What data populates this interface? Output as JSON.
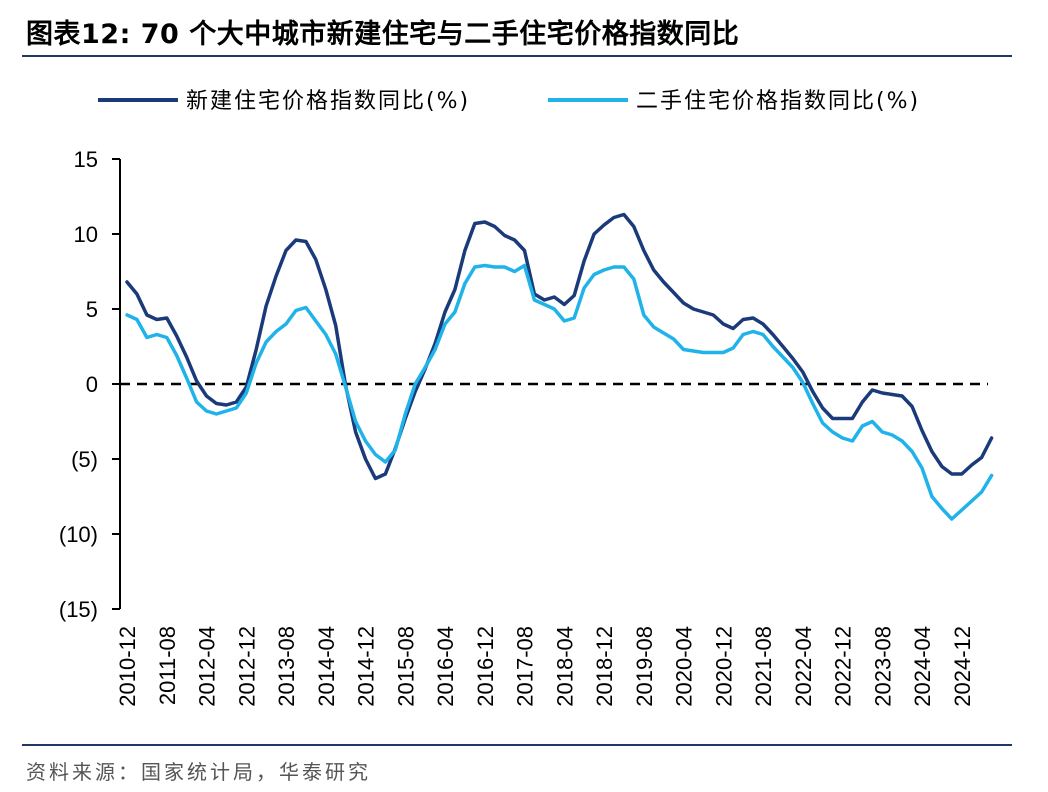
{
  "header": {
    "title": "图表12:  70 个大中城市新建住宅与二手住宅价格指数同比"
  },
  "footer": {
    "source": "资料来源：国家统计局，华泰研究"
  },
  "chart_data": {
    "type": "line",
    "title": "",
    "xlabel": "",
    "ylabel": "",
    "ylim": [
      -15,
      15
    ],
    "y_ticks": [
      15,
      10,
      5,
      0,
      -5,
      -10,
      -15
    ],
    "y_tick_labels": [
      "15",
      "10",
      "5",
      "0",
      "(5)",
      "(10)",
      "(15)"
    ],
    "x_tick_labels": [
      "2010-12",
      "2011-08",
      "2012-04",
      "2012-12",
      "2013-08",
      "2014-04",
      "2014-12",
      "2015-08",
      "2016-04",
      "2016-12",
      "2017-08",
      "2018-04",
      "2018-12",
      "2019-08",
      "2020-04",
      "2020-12",
      "2021-08",
      "2022-04",
      "2022-12",
      "2023-08",
      "2024-04",
      "2024-12"
    ],
    "x_start": "2010-12",
    "zero_line": "dashed",
    "grid": false,
    "legend_position": "top",
    "series": [
      {
        "name": "新建住宅价格指数同比(%)",
        "color": "#1a3a7a",
        "points": [
          [
            "2010-12",
            6.8
          ],
          [
            "2011-02",
            6.0
          ],
          [
            "2011-04",
            4.6
          ],
          [
            "2011-06",
            4.3
          ],
          [
            "2011-08",
            4.4
          ],
          [
            "2011-10",
            3.2
          ],
          [
            "2011-12",
            1.8
          ],
          [
            "2012-02",
            0.2
          ],
          [
            "2012-04",
            -0.8
          ],
          [
            "2012-06",
            -1.3
          ],
          [
            "2012-08",
            -1.4
          ],
          [
            "2012-10",
            -1.2
          ],
          [
            "2012-12",
            -0.2
          ],
          [
            "2013-02",
            2.3
          ],
          [
            "2013-04",
            5.2
          ],
          [
            "2013-06",
            7.2
          ],
          [
            "2013-08",
            8.9
          ],
          [
            "2013-10",
            9.6
          ],
          [
            "2013-12",
            9.5
          ],
          [
            "2014-02",
            8.3
          ],
          [
            "2014-04",
            6.3
          ],
          [
            "2014-06",
            3.9
          ],
          [
            "2014-08",
            -0.1
          ],
          [
            "2014-10",
            -3.2
          ],
          [
            "2014-12",
            -5.0
          ],
          [
            "2015-02",
            -6.3
          ],
          [
            "2015-04",
            -6.0
          ],
          [
            "2015-06",
            -4.3
          ],
          [
            "2015-08",
            -2.3
          ],
          [
            "2015-10",
            -0.5
          ],
          [
            "2015-12",
            1.0
          ],
          [
            "2016-02",
            2.7
          ],
          [
            "2016-04",
            4.8
          ],
          [
            "2016-06",
            6.3
          ],
          [
            "2016-08",
            8.9
          ],
          [
            "2016-10",
            10.7
          ],
          [
            "2016-12",
            10.8
          ],
          [
            "2017-02",
            10.5
          ],
          [
            "2017-04",
            9.9
          ],
          [
            "2017-06",
            9.6
          ],
          [
            "2017-08",
            8.9
          ],
          [
            "2017-10",
            6.0
          ],
          [
            "2017-12",
            5.6
          ],
          [
            "2018-02",
            5.8
          ],
          [
            "2018-04",
            5.3
          ],
          [
            "2018-06",
            5.9
          ],
          [
            "2018-08",
            8.2
          ],
          [
            "2018-10",
            10.0
          ],
          [
            "2018-12",
            10.6
          ],
          [
            "2019-02",
            11.1
          ],
          [
            "2019-04",
            11.3
          ],
          [
            "2019-06",
            10.5
          ],
          [
            "2019-08",
            8.9
          ],
          [
            "2019-10",
            7.6
          ],
          [
            "2019-12",
            6.8
          ],
          [
            "2020-02",
            6.1
          ],
          [
            "2020-04",
            5.4
          ],
          [
            "2020-06",
            5.0
          ],
          [
            "2020-08",
            4.8
          ],
          [
            "2020-10",
            4.6
          ],
          [
            "2020-12",
            4.0
          ],
          [
            "2021-02",
            3.7
          ],
          [
            "2021-04",
            4.3
          ],
          [
            "2021-06",
            4.4
          ],
          [
            "2021-08",
            4.0
          ],
          [
            "2021-10",
            3.3
          ],
          [
            "2021-12",
            2.5
          ],
          [
            "2022-02",
            1.7
          ],
          [
            "2022-04",
            0.8
          ],
          [
            "2022-06",
            -0.5
          ],
          [
            "2022-08",
            -1.6
          ],
          [
            "2022-10",
            -2.3
          ],
          [
            "2022-12",
            -2.3
          ],
          [
            "2023-02",
            -2.3
          ],
          [
            "2023-04",
            -1.2
          ],
          [
            "2023-06",
            -0.4
          ],
          [
            "2023-08",
            -0.6
          ],
          [
            "2023-10",
            -0.7
          ],
          [
            "2023-12",
            -0.8
          ],
          [
            "2024-02",
            -1.5
          ],
          [
            "2024-04",
            -3.1
          ],
          [
            "2024-06",
            -4.5
          ],
          [
            "2024-08",
            -5.5
          ],
          [
            "2024-10",
            -6.0
          ],
          [
            "2024-12",
            -6.0
          ],
          [
            "2025-02",
            -5.4
          ],
          [
            "2025-04",
            -4.9
          ],
          [
            "2025-06",
            -3.6
          ]
        ]
      },
      {
        "name": "二手住宅价格指数同比(%)",
        "color": "#1fb3ea",
        "points": [
          [
            "2010-12",
            4.6
          ],
          [
            "2011-02",
            4.3
          ],
          [
            "2011-04",
            3.1
          ],
          [
            "2011-06",
            3.3
          ],
          [
            "2011-08",
            3.1
          ],
          [
            "2011-10",
            1.9
          ],
          [
            "2011-12",
            0.4
          ],
          [
            "2012-02",
            -1.2
          ],
          [
            "2012-04",
            -1.8
          ],
          [
            "2012-06",
            -2.0
          ],
          [
            "2012-08",
            -1.8
          ],
          [
            "2012-10",
            -1.6
          ],
          [
            "2012-12",
            -0.6
          ],
          [
            "2013-02",
            1.4
          ],
          [
            "2013-04",
            2.8
          ],
          [
            "2013-06",
            3.5
          ],
          [
            "2013-08",
            4.0
          ],
          [
            "2013-10",
            4.9
          ],
          [
            "2013-12",
            5.1
          ],
          [
            "2014-02",
            4.2
          ],
          [
            "2014-04",
            3.3
          ],
          [
            "2014-06",
            2.0
          ],
          [
            "2014-08",
            -0.2
          ],
          [
            "2014-10",
            -2.5
          ],
          [
            "2014-12",
            -3.8
          ],
          [
            "2015-02",
            -4.7
          ],
          [
            "2015-04",
            -5.2
          ],
          [
            "2015-06",
            -4.4
          ],
          [
            "2015-08",
            -2.0
          ],
          [
            "2015-10",
            0.0
          ],
          [
            "2015-12",
            1.1
          ],
          [
            "2016-02",
            2.3
          ],
          [
            "2016-04",
            4.0
          ],
          [
            "2016-06",
            4.8
          ],
          [
            "2016-08",
            6.7
          ],
          [
            "2016-10",
            7.8
          ],
          [
            "2016-12",
            7.9
          ],
          [
            "2017-02",
            7.8
          ],
          [
            "2017-04",
            7.8
          ],
          [
            "2017-06",
            7.5
          ],
          [
            "2017-08",
            7.9
          ],
          [
            "2017-10",
            5.6
          ],
          [
            "2017-12",
            5.3
          ],
          [
            "2018-02",
            5.0
          ],
          [
            "2018-04",
            4.2
          ],
          [
            "2018-06",
            4.4
          ],
          [
            "2018-08",
            6.4
          ],
          [
            "2018-10",
            7.3
          ],
          [
            "2018-12",
            7.6
          ],
          [
            "2019-02",
            7.8
          ],
          [
            "2019-04",
            7.8
          ],
          [
            "2019-06",
            7.0
          ],
          [
            "2019-08",
            4.6
          ],
          [
            "2019-10",
            3.8
          ],
          [
            "2019-12",
            3.4
          ],
          [
            "2020-02",
            3.0
          ],
          [
            "2020-04",
            2.3
          ],
          [
            "2020-06",
            2.2
          ],
          [
            "2020-08",
            2.1
          ],
          [
            "2020-10",
            2.1
          ],
          [
            "2020-12",
            2.1
          ],
          [
            "2021-02",
            2.4
          ],
          [
            "2021-04",
            3.3
          ],
          [
            "2021-06",
            3.5
          ],
          [
            "2021-08",
            3.3
          ],
          [
            "2021-10",
            2.5
          ],
          [
            "2021-12",
            1.8
          ],
          [
            "2022-02",
            1.1
          ],
          [
            "2022-04",
            0.1
          ],
          [
            "2022-06",
            -1.3
          ],
          [
            "2022-08",
            -2.6
          ],
          [
            "2022-10",
            -3.2
          ],
          [
            "2022-12",
            -3.6
          ],
          [
            "2023-02",
            -3.8
          ],
          [
            "2023-04",
            -2.8
          ],
          [
            "2023-06",
            -2.5
          ],
          [
            "2023-08",
            -3.2
          ],
          [
            "2023-10",
            -3.4
          ],
          [
            "2023-12",
            -3.8
          ],
          [
            "2024-02",
            -4.5
          ],
          [
            "2024-04",
            -5.6
          ],
          [
            "2024-06",
            -7.5
          ],
          [
            "2024-08",
            -8.3
          ],
          [
            "2024-10",
            -9.0
          ],
          [
            "2024-12",
            -8.4
          ],
          [
            "2025-02",
            -7.8
          ],
          [
            "2025-04",
            -7.2
          ],
          [
            "2025-06",
            -6.1
          ]
        ]
      }
    ]
  }
}
